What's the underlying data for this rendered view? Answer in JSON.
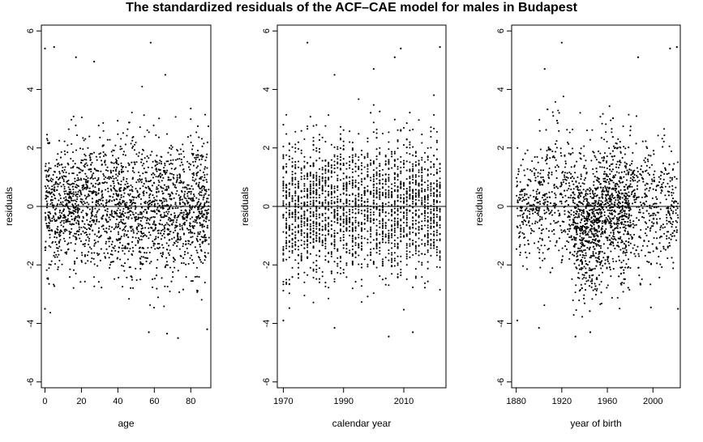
{
  "title": "The standardized residuals of the ACF–CAE model for males in Budapest",
  "chart_data": [
    {
      "type": "scatter",
      "title": "",
      "xlabel": "age",
      "ylabel": "residuals",
      "xlim": [
        -2,
        91
      ],
      "ylim": [
        -6.2,
        6.2
      ],
      "xticks": [
        0,
        20,
        40,
        60,
        80
      ],
      "yticks": [
        -6,
        -4,
        -2,
        0,
        2,
        4,
        6
      ],
      "reference_line_y": 0,
      "grid": false,
      "x_range": [
        0,
        90
      ],
      "n_points": 2200,
      "outliers": [
        {
          "x": 0,
          "y": 5.4
        },
        {
          "x": 5,
          "y": 5.45
        },
        {
          "x": 17,
          "y": 5.1
        },
        {
          "x": 27,
          "y": 4.95
        },
        {
          "x": 58,
          "y": 5.6
        },
        {
          "x": 66,
          "y": 4.5
        },
        {
          "x": 57,
          "y": -4.3
        },
        {
          "x": 67,
          "y": -4.35
        },
        {
          "x": 73,
          "y": -4.5
        },
        {
          "x": 89,
          "y": -4.2
        },
        {
          "x": 0,
          "y": -3.5
        }
      ]
    },
    {
      "type": "scatter",
      "title": "",
      "xlabel": "calendar year",
      "ylabel": "residuals",
      "xlim": [
        1968,
        2024
      ],
      "ylim": [
        -6.2,
        6.2
      ],
      "xticks": [
        1970,
        1990,
        2010
      ],
      "yticks": [
        -6,
        -4,
        -2,
        0,
        2,
        4,
        6
      ],
      "reference_line_y": 0,
      "grid": false,
      "x_range": [
        1970,
        2022
      ],
      "n_points": 2200,
      "outliers": [
        {
          "x": 1978,
          "y": 5.6
        },
        {
          "x": 2007,
          "y": 5.1
        },
        {
          "x": 2009,
          "y": 5.4
        },
        {
          "x": 2022,
          "y": 5.45
        },
        {
          "x": 2000,
          "y": 4.7
        },
        {
          "x": 1987,
          "y": 4.5
        },
        {
          "x": 1987,
          "y": -4.15
        },
        {
          "x": 2005,
          "y": -4.45
        },
        {
          "x": 2013,
          "y": -4.3
        },
        {
          "x": 1970,
          "y": -3.9
        }
      ]
    },
    {
      "type": "scatter",
      "title": "",
      "xlabel": "year of birth",
      "ylabel": "residuals",
      "xlim": [
        1876,
        2024
      ],
      "ylim": [
        -6.2,
        6.2
      ],
      "xticks": [
        1880,
        1920,
        1960,
        2000
      ],
      "yticks": [
        -6,
        -4,
        -2,
        0,
        2,
        4,
        6
      ],
      "reference_line_y": 0,
      "grid": false,
      "x_range": [
        1880,
        2022
      ],
      "n_points": 2200,
      "outliers": [
        {
          "x": 1920,
          "y": 5.6
        },
        {
          "x": 1987,
          "y": 5.1
        },
        {
          "x": 2015,
          "y": 5.4
        },
        {
          "x": 2021,
          "y": 5.45
        },
        {
          "x": 1905,
          "y": 4.7
        },
        {
          "x": 1900,
          "y": -4.15
        },
        {
          "x": 1932,
          "y": -4.45
        },
        {
          "x": 1945,
          "y": -4.3
        },
        {
          "x": 1881,
          "y": -3.9
        },
        {
          "x": 2022,
          "y": -3.5
        }
      ]
    }
  ]
}
